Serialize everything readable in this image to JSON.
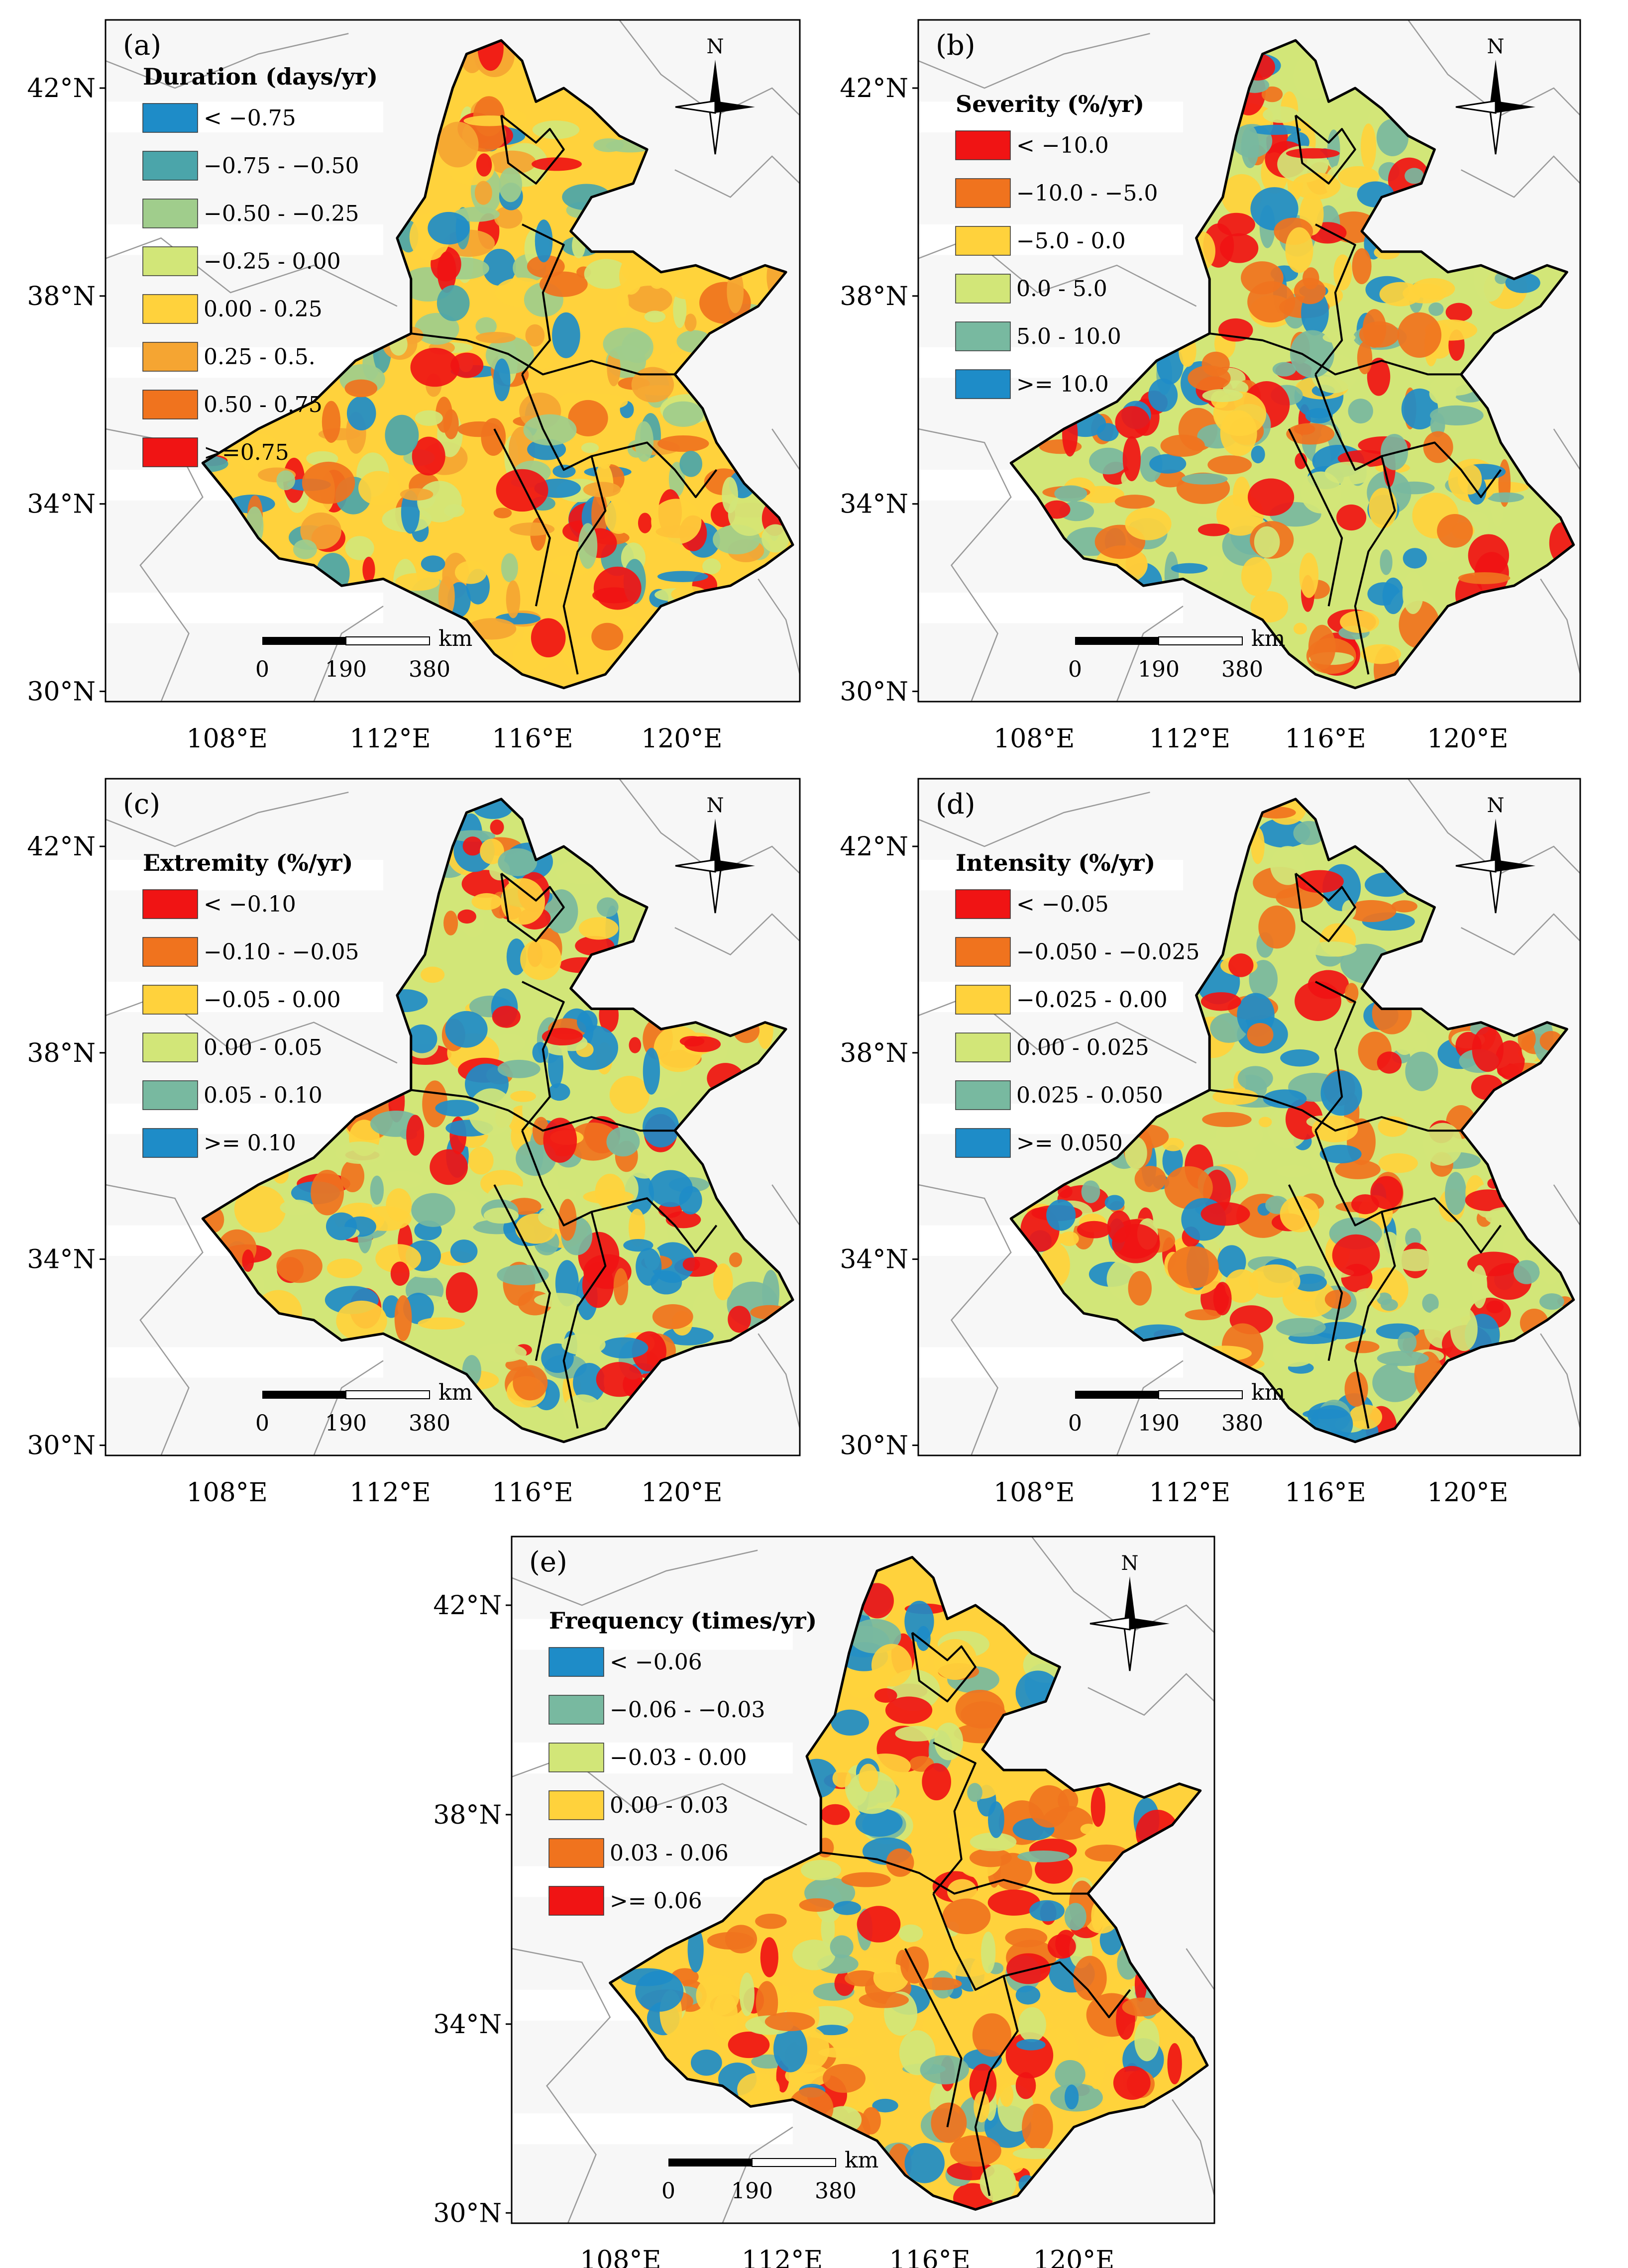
{
  "figure": {
    "compass_label": "N",
    "scale_unit": "km",
    "scale_ticks": [
      "0",
      "190",
      "380"
    ],
    "lat_labels": [
      "42°N",
      "38°N",
      "34°N",
      "30°N"
    ],
    "lon_labels": [
      "108°E",
      "112°E",
      "116°E",
      "120°E"
    ],
    "colors": {
      "red": "#f01414",
      "dark_orange": "#f0731e",
      "orange": "#f5a532",
      "yellow": "#ffd23c",
      "yellow_green": "#d2e678",
      "light_green": "#a0cd8c",
      "teal": "#4ba5aa",
      "sea_green": "#78b9a0",
      "blue": "#1e8cc8",
      "background": "#f7f7f7",
      "border": "#000000",
      "outline": "#9a9a9a"
    }
  },
  "panels": [
    {
      "label": "(a)",
      "legend_title": "Duration (days/yr)",
      "legend": [
        {
          "label": "< −0.75",
          "color": "#1e8cc8"
        },
        {
          "label": "−0.75 - −0.50",
          "color": "#4ba5aa"
        },
        {
          "label": "−0.50 - −0.25",
          "color": "#a0cd8c"
        },
        {
          "label": "−0.25 - 0.00",
          "color": "#d2e678"
        },
        {
          "label": "0.00 - 0.25",
          "color": "#ffd23c"
        },
        {
          "label": "0.25 - 0.5.",
          "color": "#f5a532"
        },
        {
          "label": "0.50 - 0.75",
          "color": "#f0731e"
        },
        {
          "label": ">=0.75",
          "color": "#f01414"
        }
      ]
    },
    {
      "label": "(b)",
      "legend_title": "Severity (%/yr)",
      "legend": [
        {
          "label": "< −10.0",
          "color": "#f01414"
        },
        {
          "label": "−10.0 - −5.0",
          "color": "#f0731e"
        },
        {
          "label": "−5.0 - 0.0",
          "color": "#ffd23c"
        },
        {
          "label": "0.0 - 5.0",
          "color": "#d2e678"
        },
        {
          "label": "5.0 - 10.0",
          "color": "#78b9a0"
        },
        {
          "label": ">= 10.0",
          "color": "#1e8cc8"
        }
      ]
    },
    {
      "label": "(c)",
      "legend_title": "Extremity (%/yr)",
      "legend": [
        {
          "label": "< −0.10",
          "color": "#f01414"
        },
        {
          "label": "−0.10 - −0.05",
          "color": "#f0731e"
        },
        {
          "label": "−0.05 - 0.00",
          "color": "#ffd23c"
        },
        {
          "label": "0.00 - 0.05",
          "color": "#d2e678"
        },
        {
          "label": "0.05 - 0.10",
          "color": "#78b9a0"
        },
        {
          "label": ">= 0.10",
          "color": "#1e8cc8"
        }
      ]
    },
    {
      "label": "(d)",
      "legend_title": "Intensity (%/yr)",
      "legend": [
        {
          "label": "< −0.05",
          "color": "#f01414"
        },
        {
          "label": "−0.050 - −0.025",
          "color": "#f0731e"
        },
        {
          "label": "−0.025 - 0.00",
          "color": "#ffd23c"
        },
        {
          "label": "0.00 - 0.025",
          "color": "#d2e678"
        },
        {
          "label": "0.025 - 0.050",
          "color": "#78b9a0"
        },
        {
          "label": ">= 0.050",
          "color": "#1e8cc8"
        }
      ]
    },
    {
      "label": "(e)",
      "legend_title": "Frequency (times/yr)",
      "legend": [
        {
          "label": "< −0.06",
          "color": "#1e8cc8"
        },
        {
          "label": "−0.06 - −0.03",
          "color": "#78b9a0"
        },
        {
          "label": "−0.03 - 0.00",
          "color": "#d2e678"
        },
        {
          "label": "0.00 - 0.03",
          "color": "#ffd23c"
        },
        {
          "label": "0.03 - 0.06",
          "color": "#f0731e"
        },
        {
          "label": ">= 0.06",
          "color": "#f01414"
        }
      ]
    }
  ]
}
